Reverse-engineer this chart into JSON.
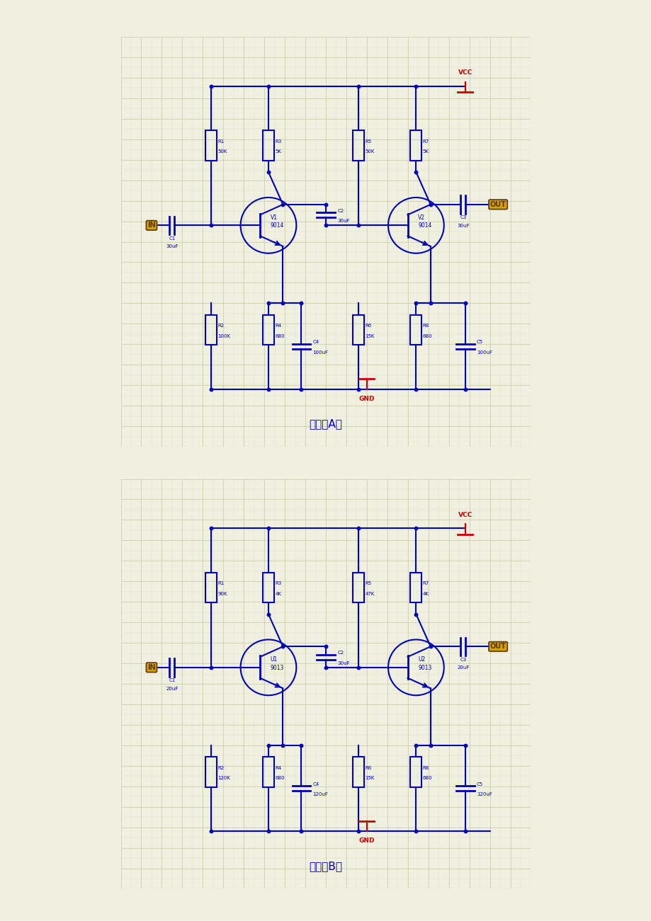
{
  "page_bg": "#F0F0E0",
  "panel_bg": "#FAFAEE",
  "grid_color_major": "#CCCCAA",
  "grid_color_minor": "#E0E0CC",
  "cc": "#0000BB",
  "rc": "#CC0000",
  "yb": "#D4A000",
  "yt": "#5A3800",
  "circuit_A": {
    "title": "附图（A）",
    "T1_name": "V1",
    "T1_model": "9014",
    "T2_name": "V2",
    "T2_model": "9014",
    "R1": "50K",
    "R2": "100K",
    "R3": "5K",
    "R4": "680",
    "R5": "50K",
    "R6": "15K",
    "R7": "5K",
    "R8": "680",
    "C1": "30uF",
    "C2": "30uF",
    "C3": "30uF",
    "C4": "100uF",
    "C5": "100uF"
  },
  "circuit_B": {
    "title": "附图（B）",
    "T1_name": "U1",
    "T1_model": "9013",
    "T2_name": "U2",
    "T2_model": "9013",
    "R1": "90K",
    "R2": "120K",
    "R3": "4K",
    "R4": "680",
    "R5": "47K",
    "R6": "15K",
    "R7": "4K",
    "R8": "680",
    "C1": "20uF",
    "C2": "30uF",
    "C3": "20uF",
    "C4": "120uF",
    "C5": "120uF"
  }
}
